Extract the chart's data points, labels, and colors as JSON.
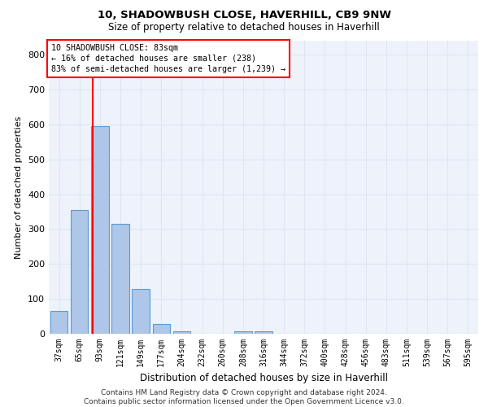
{
  "title": "10, SHADOWBUSH CLOSE, HAVERHILL, CB9 9NW",
  "subtitle": "Size of property relative to detached houses in Haverhill",
  "xlabel": "Distribution of detached houses by size in Haverhill",
  "ylabel": "Number of detached properties",
  "bar_labels": [
    "37sqm",
    "65sqm",
    "93sqm",
    "121sqm",
    "149sqm",
    "177sqm",
    "204sqm",
    "232sqm",
    "260sqm",
    "288sqm",
    "316sqm",
    "344sqm",
    "372sqm",
    "400sqm",
    "428sqm",
    "456sqm",
    "483sqm",
    "511sqm",
    "539sqm",
    "567sqm",
    "595sqm"
  ],
  "bar_values": [
    65,
    355,
    595,
    315,
    128,
    28,
    8,
    0,
    0,
    8,
    8,
    0,
    0,
    0,
    0,
    0,
    0,
    0,
    0,
    0,
    0
  ],
  "bar_color": "#aec6e8",
  "bar_edge_color": "#5b9bd5",
  "grid_color": "#dce6f1",
  "background_color": "#eef3fb",
  "red_line_x": 1.64,
  "annotation_lines": [
    "10 SHADOWBUSH CLOSE: 83sqm",
    "← 16% of detached houses are smaller (238)",
    "83% of semi-detached houses are larger (1,239) →"
  ],
  "annotation_box_color": "white",
  "annotation_box_edge": "red",
  "footer_line1": "Contains HM Land Registry data © Crown copyright and database right 2024.",
  "footer_line2": "Contains public sector information licensed under the Open Government Licence v3.0.",
  "ylim": [
    0,
    840
  ],
  "yticks": [
    0,
    100,
    200,
    300,
    400,
    500,
    600,
    700,
    800
  ]
}
